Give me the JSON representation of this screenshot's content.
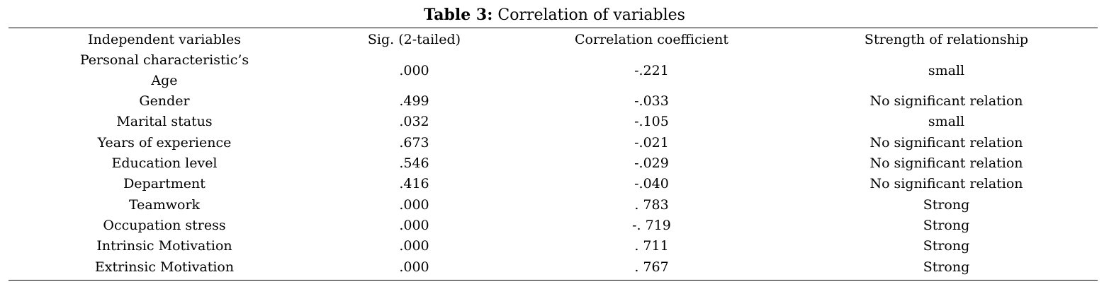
{
  "caption": {
    "label": "Table 3:",
    "title": "Correlation of variables"
  },
  "table": {
    "headers": [
      "Independent variables",
      "Sig. (2-tailed)",
      "Correlation coefficient",
      "Strength of relationship"
    ],
    "rows": [
      {
        "variable": "Personal characteristic’s",
        "variable_line2": "Age",
        "sig": ".000",
        "coef": "-.221",
        "strength": "small"
      },
      {
        "variable": "Gender",
        "sig": ".499",
        "coef": "-.033",
        "strength": "No significant relation"
      },
      {
        "variable": "Marital status",
        "sig": ".032",
        "coef": "-.105",
        "strength": "small"
      },
      {
        "variable": "Years of experience",
        "sig": ".673",
        "coef": "-.021",
        "strength": "No significant relation"
      },
      {
        "variable": "Education level",
        "sig": ".546",
        "coef": "-.029",
        "strength": "No significant relation"
      },
      {
        "variable": "Department",
        "sig": ".416",
        "coef": "-.040",
        "strength": "No significant relation"
      },
      {
        "variable": "Teamwork",
        "sig": ".000",
        "coef": ". 783",
        "strength": "Strong"
      },
      {
        "variable": "Occupation stress",
        "sig": ".000",
        "coef": "-. 719",
        "strength": "Strong"
      },
      {
        "variable": "Intrinsic Motivation",
        "sig": ".000",
        "coef": ". 711",
        "strength": "Strong"
      },
      {
        "variable": "Extrinsic Motivation",
        "sig": ".000",
        "coef": ". 767",
        "strength": "Strong"
      }
    ]
  }
}
